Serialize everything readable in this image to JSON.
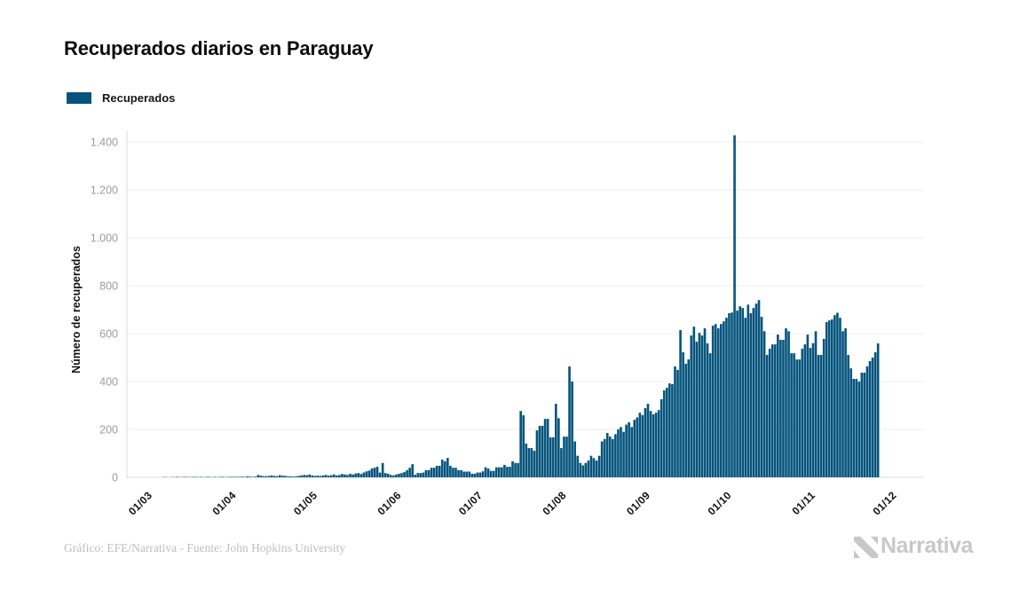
{
  "page": {
    "title": "Recuperados diarios en Paraguay",
    "footer": "Gráfico: EFE/Narrativa - Fuente: John Hopkins University",
    "brand": "Narrativa"
  },
  "legend": {
    "label": "Recuperados",
    "color": "#05547c"
  },
  "colors": {
    "bar": "#05547c",
    "gridline": "#ececec",
    "axis_line": "#dcdcdc",
    "y_tick_text": "#9c9c9c",
    "x_tick_text": "#111111",
    "brand_gray": "#c8c8c8"
  },
  "chart_data": {
    "type": "bar",
    "title": "Recuperados diarios en Paraguay",
    "xlabel": "",
    "ylabel": "Número de recuperados",
    "ylim": [
      0,
      1400
    ],
    "grid": true,
    "legend_position": "top-left",
    "y_tick_values": [
      0,
      200,
      400,
      600,
      800,
      1000,
      1200,
      1400
    ],
    "y_tick_labels": [
      "0",
      "200",
      "400",
      "600",
      "800",
      "1.000",
      "1.200",
      "1.400"
    ],
    "x_ticks": [
      {
        "label": "01/03",
        "day_offset": 0
      },
      {
        "label": "01/04",
        "day_offset": 31
      },
      {
        "label": "01/05",
        "day_offset": 61
      },
      {
        "label": "01/06",
        "day_offset": 92
      },
      {
        "label": "01/07",
        "day_offset": 122
      },
      {
        "label": "01/08",
        "day_offset": 153
      },
      {
        "label": "01/09",
        "day_offset": 184
      },
      {
        "label": "01/10",
        "day_offset": 214
      },
      {
        "label": "01/11",
        "day_offset": 245
      },
      {
        "label": "01/12",
        "day_offset": 275
      }
    ],
    "series": [
      {
        "name": "Recuperados",
        "color": "#05547c",
        "frequency": "daily",
        "start": "01/03",
        "end": "23/11",
        "peak_value": 1428,
        "peak_date": "01/10",
        "values": [
          0,
          0,
          0,
          1,
          1,
          0,
          1,
          1,
          2,
          1,
          1,
          2,
          1,
          1,
          2,
          2,
          1,
          2,
          1,
          2,
          2,
          1,
          2,
          1,
          2,
          2,
          1,
          2,
          2,
          2,
          2,
          2,
          3,
          2,
          4,
          3,
          2,
          3,
          10,
          7,
          5,
          5,
          6,
          8,
          6,
          5,
          9,
          7,
          6,
          4,
          4,
          3,
          4,
          6,
          8,
          10,
          9,
          12,
          8,
          6,
          7,
          6,
          8,
          10,
          7,
          9,
          12,
          8,
          10,
          14,
          12,
          10,
          15,
          12,
          16,
          18,
          14,
          20,
          25,
          28,
          37,
          40,
          44,
          20,
          60,
          18,
          15,
          10,
          8,
          12,
          15,
          18,
          22,
          30,
          40,
          55,
          11,
          18,
          18,
          20,
          30,
          30,
          40,
          40,
          48,
          48,
          74,
          67,
          81,
          48,
          40,
          40,
          30,
          30,
          24,
          24,
          24,
          15,
          15,
          20,
          20,
          25,
          42,
          37,
          27,
          27,
          42,
          42,
          42,
          52,
          44,
          44,
          67,
          60,
          60,
          277,
          259,
          141,
          122,
          122,
          111,
          196,
          215,
          215,
          244,
          244,
          167,
          167,
          307,
          247,
          122,
          170,
          170,
          463,
          400,
          150,
          90,
          60,
          50,
          60,
          70,
          90,
          80,
          70,
          90,
          150,
          160,
          185,
          170,
          160,
          180,
          200,
          210,
          190,
          220,
          230,
          210,
          240,
          250,
          270,
          260,
          289,
          307,
          277,
          263,
          270,
          281,
          326,
          363,
          374,
          392,
          389,
          463,
          448,
          615,
          522,
          474,
          492,
          592,
          629,
          566,
          603,
          592,
          622,
          559,
          518,
          633,
          640,
          622,
          640,
          651,
          666,
          685,
          688,
          1428,
          696,
          714,
          707,
          666,
          721,
          685,
          707,
          725,
          740,
          670,
          610,
          511,
          537,
          555,
          555,
          596,
          574,
          574,
          622,
          610,
          518,
          518,
          492,
          492,
          537,
          555,
          596,
          540,
          560,
          610,
          511,
          511,
          578,
          648,
          655,
          659,
          677,
          687,
          666,
          610,
          622,
          511,
          455,
          411,
          411,
          400,
          437,
          437,
          463,
          485,
          500,
          522,
          559
        ]
      }
    ]
  }
}
